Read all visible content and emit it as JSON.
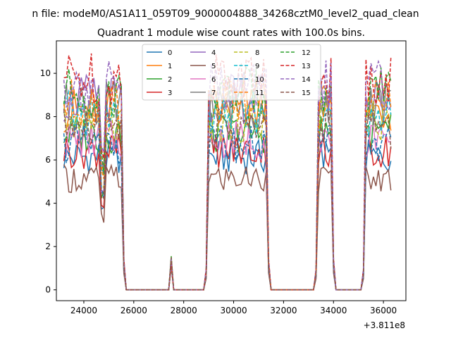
{
  "figure": {
    "suptitle": "n file: modeM0/AS1A11_059T09_9000004888_34268cztM0_level2_quad_clean",
    "title": "Quadrant 1 module wise count rates with 100.0s bins."
  },
  "chart_data": {
    "type": "line",
    "title": "Quadrant 1 module wise count rates with 100.0s bins.",
    "suptitle": "n file: modeM0/AS1A11_059T09_9000004888_34268cztM0_level2_quad_clean",
    "xlabel": "",
    "ylabel": "",
    "x_offset_label": "+3.811e8",
    "xlim": [
      22900,
      36900
    ],
    "ylim": [
      -0.5,
      11.5
    ],
    "x_ticks": [
      24000,
      26000,
      28000,
      30000,
      32000,
      34000,
      36000
    ],
    "y_ticks": [
      0,
      2,
      4,
      6,
      8,
      10
    ],
    "grid": false,
    "legend": {
      "placement": "upper-center",
      "columns": 4
    },
    "segments": [
      {
        "start": 23200,
        "end": 25500,
        "dip_x": 24750
      },
      {
        "start": 29000,
        "end": 31300
      },
      {
        "start": 33400,
        "end": 33900
      },
      {
        "start": 35300,
        "end": 36300
      }
    ],
    "flare": {
      "x": 27500,
      "peak": 1.3
    },
    "series": [
      {
        "name": "0",
        "color": "#1f77b4",
        "style": "solid",
        "level": 6.2
      },
      {
        "name": "1",
        "color": "#ff7f0e",
        "style": "solid",
        "level": 8.4
      },
      {
        "name": "2",
        "color": "#2ca02c",
        "style": "solid",
        "level": 7.3
      },
      {
        "name": "3",
        "color": "#d62728",
        "style": "solid",
        "level": 6.5
      },
      {
        "name": "4",
        "color": "#9467bd",
        "style": "solid",
        "level": 8.9
      },
      {
        "name": "5",
        "color": "#8c564b",
        "style": "solid",
        "level": 5.2
      },
      {
        "name": "6",
        "color": "#e377c2",
        "style": "solid",
        "level": 7.0
      },
      {
        "name": "7",
        "color": "#7f7f7f",
        "style": "solid",
        "level": 8.6
      },
      {
        "name": "8",
        "color": "#bcbd22",
        "style": "dashed",
        "level": 7.9
      },
      {
        "name": "9",
        "color": "#17becf",
        "style": "dashed",
        "level": 8.2
      },
      {
        "name": "10",
        "color": "#1f77b4",
        "style": "dashed",
        "level": 6.8
      },
      {
        "name": "11",
        "color": "#ff7f0e",
        "style": "dashed",
        "level": 8.7
      },
      {
        "name": "12",
        "color": "#2ca02c",
        "style": "dashed",
        "level": 9.2
      },
      {
        "name": "13",
        "color": "#d62728",
        "style": "dashed",
        "level": 9.9
      },
      {
        "name": "14",
        "color": "#9467bd",
        "style": "dashed",
        "level": 9.5
      },
      {
        "name": "15",
        "color": "#8c564b",
        "style": "dashed",
        "level": 7.5
      }
    ]
  }
}
